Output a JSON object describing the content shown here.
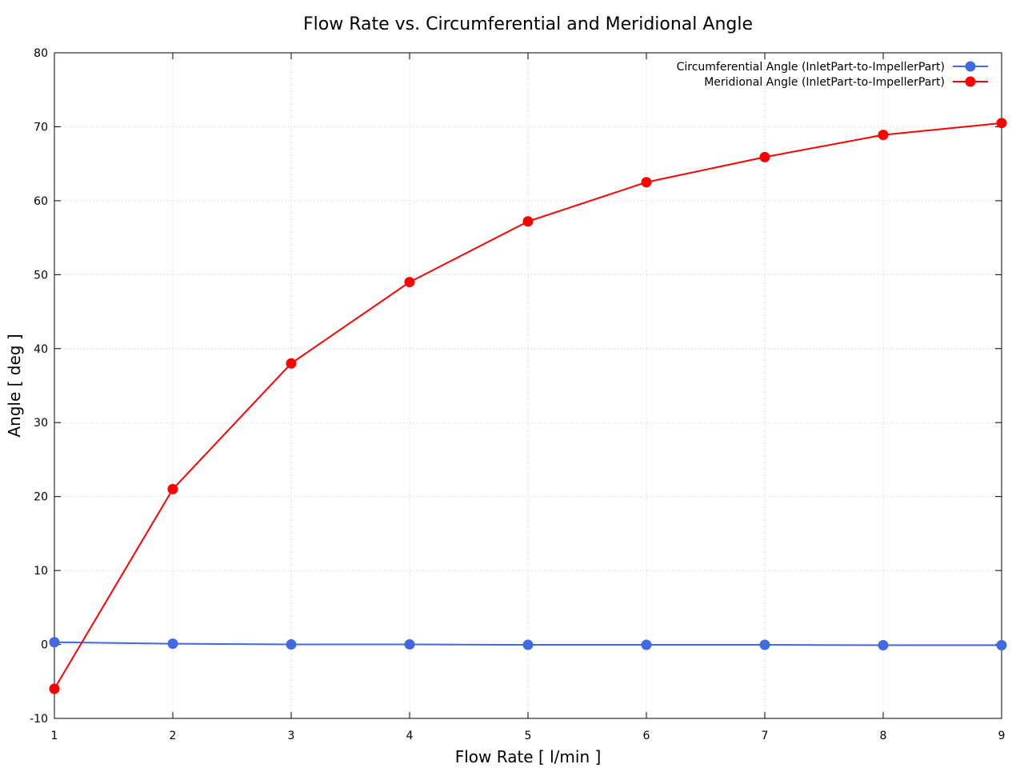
{
  "chart_data": {
    "type": "line",
    "title": "Flow Rate vs. Circumferential and Meridional Angle",
    "xlabel": "Flow Rate [ l/min ]",
    "ylabel": "Angle [ deg ]",
    "xlim": [
      1,
      9
    ],
    "ylim": [
      -10,
      80
    ],
    "xticks": [
      1,
      2,
      3,
      4,
      5,
      6,
      7,
      8,
      9
    ],
    "yticks": [
      -10,
      0,
      10,
      20,
      30,
      40,
      50,
      60,
      70,
      80
    ],
    "grid": true,
    "legend_position": "top-right",
    "x": [
      1,
      2,
      3,
      4,
      5,
      6,
      7,
      8,
      9
    ],
    "series": [
      {
        "name": "Circumferential Angle (InletPart-to-ImpellerPart)",
        "color": "#4169e1",
        "values": [
          0.3,
          0.1,
          0.0,
          0.0,
          -0.05,
          -0.05,
          -0.05,
          -0.1,
          -0.1
        ]
      },
      {
        "name": "Meridional Angle (InletPart-to-ImpellerPart)",
        "color": "#ff0000",
        "values": [
          -6.0,
          21.0,
          38.0,
          49.0,
          57.2,
          62.5,
          65.9,
          68.9,
          70.5
        ]
      }
    ]
  }
}
